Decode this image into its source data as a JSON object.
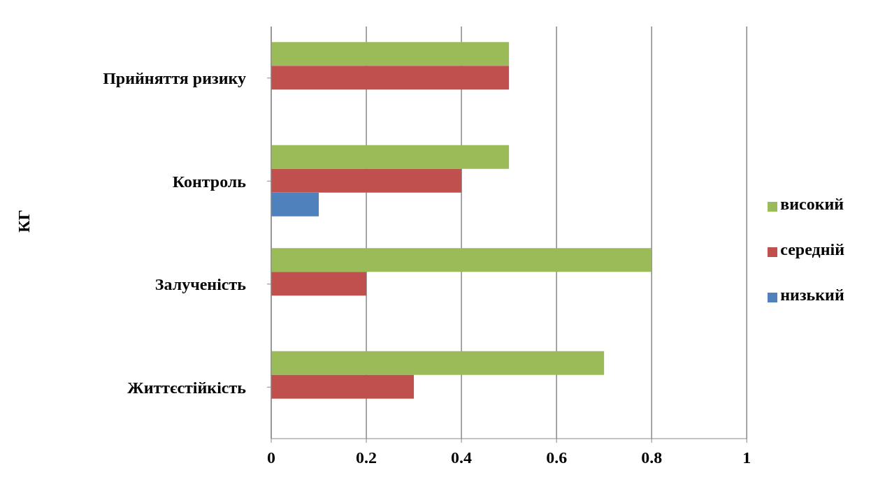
{
  "chart_data": {
    "type": "bar",
    "orientation": "horizontal",
    "ylabel": "КГ",
    "categories": [
      "Прийняття ризику",
      "Контроль",
      "Залученість",
      "Життєстійкість"
    ],
    "series": [
      {
        "name": "високий",
        "color": "#9bbb59",
        "values": [
          0.5,
          0.5,
          0.8,
          0.7
        ]
      },
      {
        "name": "середній",
        "color": "#c0504d",
        "values": [
          0.5,
          0.4,
          0.2,
          0.3
        ]
      },
      {
        "name": "низький",
        "color": "#4f81bd",
        "values": [
          0,
          0.1,
          0,
          0
        ]
      }
    ],
    "xlim": [
      0,
      1
    ],
    "xticks": [
      0,
      0.2,
      0.4,
      0.6,
      0.8,
      1
    ],
    "grid": "x",
    "legend": "right"
  }
}
